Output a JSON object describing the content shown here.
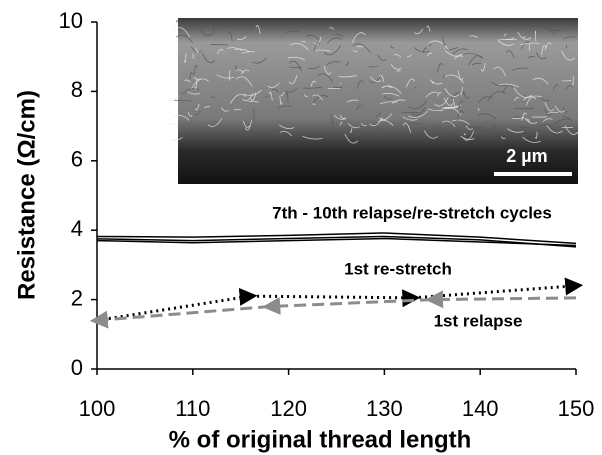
{
  "chart_data": {
    "type": "line",
    "xlabel": "% of original thread length",
    "ylabel": "Resistance (Ω/cm)",
    "xlim": [
      100,
      150
    ],
    "xticks": [
      100,
      110,
      120,
      130,
      140,
      150
    ],
    "ylim": [
      0,
      10
    ],
    "yticks": [
      0,
      2,
      4,
      6,
      8,
      10
    ],
    "grid": false,
    "annotations": [
      "7th - 10th relapse/re-stretch cycles",
      "1st re-stretch",
      "1st relapse",
      "2 µm"
    ],
    "series": [
      {
        "name": "1st re-stretch",
        "color": "#000000",
        "style": "dotted",
        "x": [
          100,
          116,
          133,
          150
        ],
        "values": [
          1.4,
          2.1,
          2.05,
          2.4
        ]
      },
      {
        "name": "1st relapse",
        "color": "#8c8c8c",
        "style": "dashed",
        "x": [
          150,
          135,
          118,
          100
        ],
        "values": [
          2.05,
          2.0,
          1.8,
          1.4
        ]
      },
      {
        "color": "#000000",
        "style": "solid",
        "x": [
          100,
          110,
          120,
          130,
          140,
          150
        ],
        "values": [
          3.82,
          3.8,
          3.85,
          3.92,
          3.8,
          3.62
        ]
      },
      {
        "color": "#000000",
        "style": "solid",
        "x": [
          100,
          110,
          120,
          130,
          140,
          150
        ],
        "values": [
          3.75,
          3.7,
          3.76,
          3.82,
          3.72,
          3.52
        ]
      },
      {
        "color": "#000000",
        "style": "solid",
        "x": [
          100,
          110,
          120,
          130,
          140,
          150
        ],
        "values": [
          3.7,
          3.64,
          3.7,
          3.76,
          3.66,
          3.56
        ]
      }
    ]
  }
}
